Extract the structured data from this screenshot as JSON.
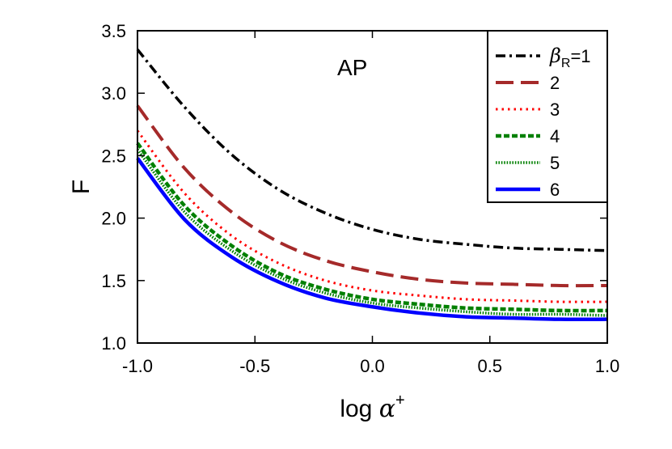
{
  "chart_data": {
    "type": "line",
    "title": "",
    "annotation": "AP",
    "xlabel": {
      "prefix": "log ",
      "symbol": "α",
      "superscript": "+"
    },
    "ylabel": "F",
    "xlim": [
      -1.0,
      1.0
    ],
    "ylim": [
      1.0,
      3.5
    ],
    "x_ticks": [
      -1.0,
      -0.5,
      0.0,
      0.5,
      1.0
    ],
    "y_ticks": [
      1.0,
      1.5,
      2.0,
      2.5,
      3.0,
      3.5
    ],
    "x_tick_labels": [
      "-1.0",
      "-0.5",
      "0.0",
      "0.5",
      "1.0"
    ],
    "y_tick_labels": [
      "1.0",
      "1.5",
      "2.0",
      "2.5",
      "3.0",
      "3.5"
    ],
    "grid": false,
    "legend": {
      "position": "top-right",
      "title_symbol": "β",
      "title_subscript": "R",
      "title_suffix": "=1"
    },
    "x": [
      -1.0,
      -0.8,
      -0.6,
      -0.4,
      -0.2,
      0.0,
      0.2,
      0.4,
      0.6,
      0.8,
      1.0
    ],
    "series": [
      {
        "name": "1",
        "color": "#000000",
        "dash": "dashdot",
        "values": [
          3.35,
          2.89,
          2.51,
          2.23,
          2.04,
          1.91,
          1.83,
          1.79,
          1.76,
          1.75,
          1.74
        ]
      },
      {
        "name": "2",
        "color": "#a52a2a",
        "dash": "longdash",
        "values": [
          2.9,
          2.4,
          2.05,
          1.81,
          1.66,
          1.57,
          1.51,
          1.48,
          1.47,
          1.46,
          1.46
        ]
      },
      {
        "name": "3",
        "color": "#ff0000",
        "dash": "dotted",
        "values": [
          2.7,
          2.2,
          1.86,
          1.64,
          1.5,
          1.42,
          1.38,
          1.35,
          1.34,
          1.33,
          1.33
        ]
      },
      {
        "name": "4",
        "color": "#008000",
        "dash": "shortdash",
        "values": [
          2.6,
          2.1,
          1.78,
          1.56,
          1.43,
          1.35,
          1.31,
          1.28,
          1.27,
          1.26,
          1.26
        ]
      },
      {
        "name": "5",
        "color": "#008000",
        "dash": "finedot",
        "values": [
          2.55,
          2.05,
          1.74,
          1.53,
          1.4,
          1.32,
          1.28,
          1.25,
          1.23,
          1.23,
          1.22
        ]
      },
      {
        "name": "6",
        "color": "#0000ff",
        "dash": "solid",
        "values": [
          2.48,
          1.99,
          1.69,
          1.49,
          1.36,
          1.29,
          1.24,
          1.21,
          1.2,
          1.19,
          1.19
        ]
      }
    ]
  }
}
